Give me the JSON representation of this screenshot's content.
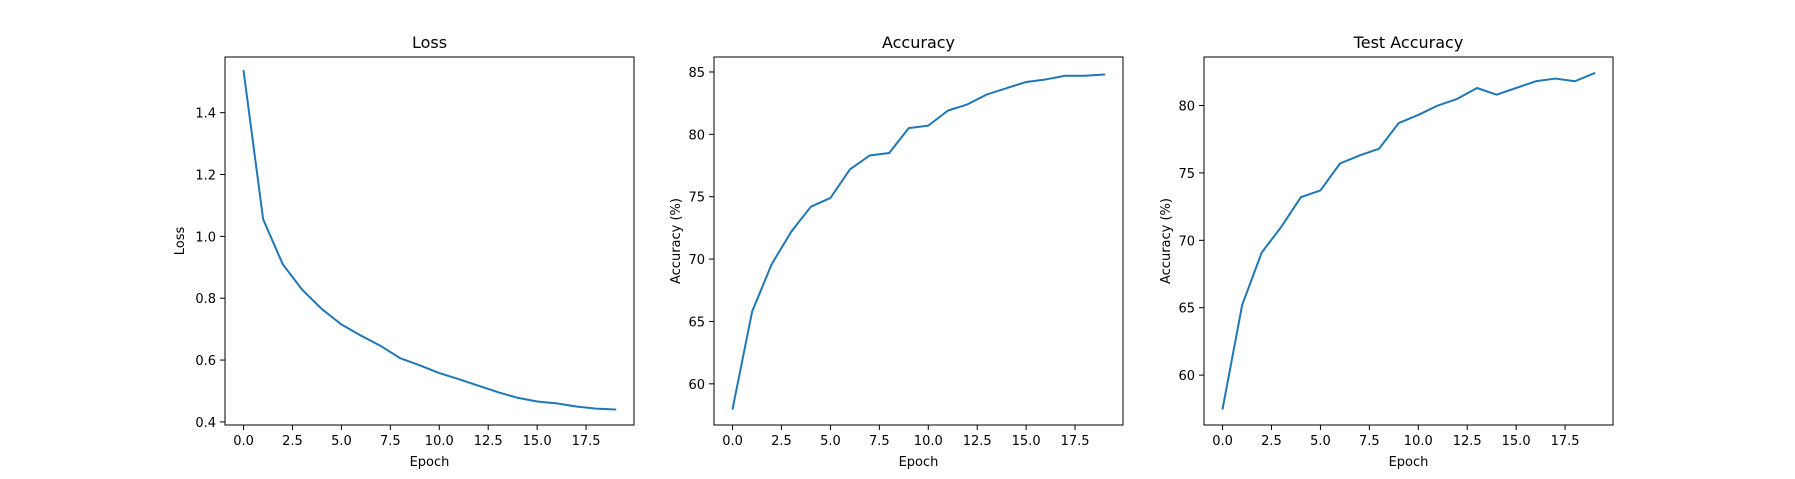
{
  "chart_data": [
    {
      "type": "line",
      "title": "Loss",
      "xlabel": "Epoch",
      "ylabel": "Loss",
      "xlim": [
        -0.95,
        19.95
      ],
      "ylim": [
        0.39,
        1.58
      ],
      "xticks": [
        0.0,
        2.5,
        5.0,
        7.5,
        10.0,
        12.5,
        15.0,
        17.5
      ],
      "xtick_labels": [
        "0.0",
        "2.5",
        "5.0",
        "7.5",
        "10.0",
        "12.5",
        "15.0",
        "17.5"
      ],
      "yticks": [
        0.4,
        0.6,
        0.8,
        1.0,
        1.2,
        1.4
      ],
      "ytick_labels": [
        "0.4",
        "0.6",
        "0.8",
        "1.0",
        "1.2",
        "1.4"
      ],
      "grid": false,
      "color": "#1f77b4",
      "series": [
        {
          "x": [
            0,
            1,
            2,
            3,
            4,
            5,
            6,
            7,
            8,
            9,
            10,
            11,
            12,
            13,
            14,
            15,
            16,
            17,
            18,
            19
          ],
          "y": [
            1.535,
            1.055,
            0.91,
            0.827,
            0.765,
            0.715,
            0.679,
            0.646,
            0.606,
            0.583,
            0.558,
            0.538,
            0.517,
            0.496,
            0.478,
            0.466,
            0.46,
            0.45,
            0.443,
            0.44
          ]
        }
      ]
    },
    {
      "type": "line",
      "title": "Accuracy",
      "xlabel": "Epoch",
      "ylabel": "Accuracy (%)",
      "xlim": [
        -0.95,
        19.95
      ],
      "ylim": [
        56.7,
        86.2
      ],
      "xticks": [
        0.0,
        2.5,
        5.0,
        7.5,
        10.0,
        12.5,
        15.0,
        17.5
      ],
      "xtick_labels": [
        "0.0",
        "2.5",
        "5.0",
        "7.5",
        "10.0",
        "12.5",
        "15.0",
        "17.5"
      ],
      "yticks": [
        60,
        65,
        70,
        75,
        80,
        85
      ],
      "ytick_labels": [
        "60",
        "65",
        "70",
        "75",
        "80",
        "85"
      ],
      "grid": false,
      "color": "#1f77b4",
      "series": [
        {
          "x": [
            0,
            1,
            2,
            3,
            4,
            5,
            6,
            7,
            8,
            9,
            10,
            11,
            12,
            13,
            14,
            15,
            16,
            17,
            18,
            19
          ],
          "y": [
            58.0,
            65.8,
            69.6,
            72.2,
            74.2,
            74.9,
            77.2,
            78.3,
            78.5,
            80.5,
            80.7,
            81.9,
            82.4,
            83.2,
            83.7,
            84.2,
            84.4,
            84.7,
            84.7,
            84.8
          ]
        }
      ]
    },
    {
      "type": "line",
      "title": "Test Accuracy",
      "xlabel": "Epoch",
      "ylabel": "Accuracy (%)",
      "xlim": [
        -0.95,
        19.95
      ],
      "ylim": [
        56.3,
        83.6
      ],
      "xticks": [
        0.0,
        2.5,
        5.0,
        7.5,
        10.0,
        12.5,
        15.0,
        17.5
      ],
      "xtick_labels": [
        "0.0",
        "2.5",
        "5.0",
        "7.5",
        "10.0",
        "12.5",
        "15.0",
        "17.5"
      ],
      "yticks": [
        60,
        65,
        70,
        75,
        80
      ],
      "ytick_labels": [
        "60",
        "65",
        "70",
        "75",
        "80"
      ],
      "grid": false,
      "color": "#1f77b4",
      "series": [
        {
          "x": [
            0,
            1,
            2,
            3,
            4,
            5,
            6,
            7,
            8,
            9,
            10,
            11,
            12,
            13,
            14,
            15,
            16,
            17,
            18,
            19
          ],
          "y": [
            57.5,
            65.2,
            69.1,
            71.0,
            73.2,
            73.7,
            75.7,
            76.3,
            76.8,
            78.7,
            79.3,
            80.0,
            80.5,
            81.3,
            80.8,
            81.3,
            81.8,
            82.0,
            81.8,
            82.4
          ]
        }
      ]
    }
  ]
}
